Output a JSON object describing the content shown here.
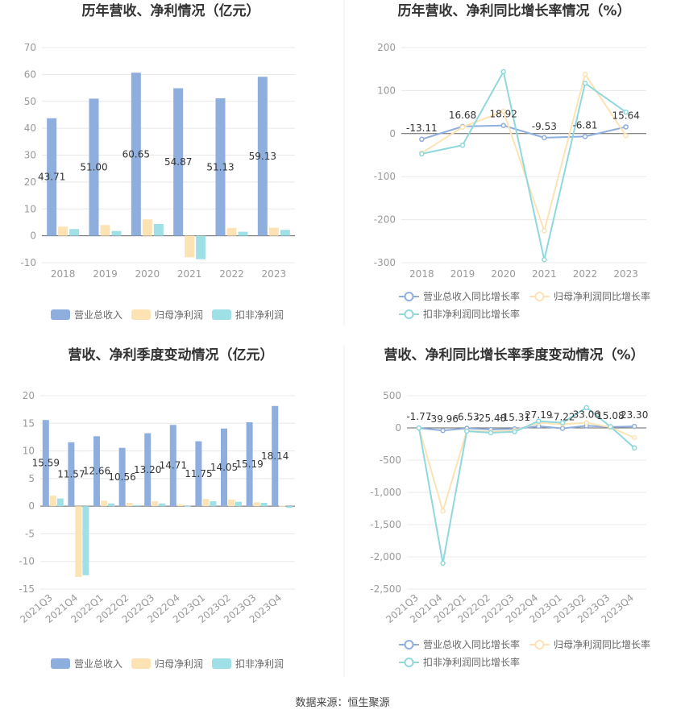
{
  "source_text": "数据来源：恒生聚源",
  "colors": {
    "revenue": "#8eaede",
    "net_profit": "#fde2b4",
    "deducted_profit": "#9fdfe6",
    "revenue_line": "#8eaede",
    "net_profit_line": "#fde2b4",
    "deducted_line": "#8fd8dc",
    "grid": "#e8e8e8",
    "axis": "#666666",
    "divider": "#eeeeee"
  },
  "chart_data": [
    {
      "id": "annual_amounts",
      "type": "bar",
      "title": "历年营收、净利情况（亿元）",
      "categories": [
        "2018",
        "2019",
        "2020",
        "2021",
        "2022",
        "2023"
      ],
      "y_ticks": [
        "-10",
        "0",
        "10",
        "20",
        "30",
        "40",
        "50",
        "60",
        "70"
      ],
      "ylim": [
        -10,
        70
      ],
      "grid": true,
      "legend_position": "bottom",
      "series": [
        {
          "name": "营业总收入",
          "values": [
            43.71,
            51.0,
            60.65,
            54.87,
            51.13,
            59.13
          ],
          "labels": [
            "43.71",
            "51.00",
            "60.65",
            "54.87",
            "51.13",
            "59.13"
          ]
        },
        {
          "name": "归母净利润",
          "values": [
            3.4,
            4.0,
            6.1,
            -8.0,
            2.9,
            3.0
          ]
        },
        {
          "name": "扣非净利润",
          "values": [
            2.5,
            1.8,
            4.4,
            -8.7,
            1.5,
            2.2
          ]
        }
      ]
    },
    {
      "id": "annual_growth",
      "type": "line",
      "title": "历年营收、净利同比增长率情况（%）",
      "categories": [
        "2018",
        "2019",
        "2020",
        "2021",
        "2022",
        "2023"
      ],
      "y_ticks": [
        "-300",
        "-200",
        "-100",
        "0",
        "100",
        "200"
      ],
      "ylim": [
        -300,
        200
      ],
      "grid": true,
      "legend_position": "bottom",
      "series": [
        {
          "name": "营业总收入同比增长率",
          "values": [
            -13.11,
            16.68,
            18.92,
            -9.53,
            -6.81,
            15.64
          ],
          "labels": [
            "-13.11",
            "16.68",
            "18.92",
            "-9.53",
            "-6.81",
            "15.64"
          ]
        },
        {
          "name": "归母净利润同比增长率",
          "values": [
            -45,
            15,
            52,
            -226,
            138,
            -5
          ]
        },
        {
          "name": "扣非净利润同比增长率",
          "values": [
            -47,
            -27,
            144,
            -293,
            117,
            50
          ]
        }
      ]
    },
    {
      "id": "quarterly_amounts",
      "type": "bar",
      "title": "营收、净利季度变动情况（亿元）",
      "categories": [
        "2021Q3",
        "2021Q4",
        "2022Q1",
        "2022Q2",
        "2022Q3",
        "2022Q4",
        "2023Q1",
        "2023Q2",
        "2023Q3",
        "2023Q4"
      ],
      "y_ticks": [
        "-15",
        "-10",
        "-5",
        "0",
        "5",
        "10",
        "15",
        "20"
      ],
      "ylim": [
        -15,
        20
      ],
      "grid": true,
      "legend_position": "bottom",
      "series": [
        {
          "name": "营业总收入",
          "values": [
            15.59,
            11.57,
            12.66,
            10.56,
            13.2,
            14.71,
            11.75,
            14.05,
            15.19,
            18.14
          ],
          "labels": [
            "15.59",
            "11.57",
            "12.66",
            "10.56",
            "13.20",
            "14.71",
            "11.75",
            "14.05",
            "15.19",
            "18.14"
          ]
        },
        {
          "name": "归母净利润",
          "values": [
            1.9,
            -12.8,
            1.0,
            0.6,
            0.9,
            0.3,
            1.3,
            1.2,
            0.7,
            0.1
          ]
        },
        {
          "name": "扣非净利润",
          "values": [
            1.4,
            -12.5,
            0.5,
            0.2,
            0.5,
            0.05,
            0.9,
            0.8,
            0.6,
            -0.3
          ]
        }
      ]
    },
    {
      "id": "quarterly_growth",
      "type": "line",
      "title": "营收、净利同比增长率季度变动情况（%）",
      "categories": [
        "2021Q3",
        "2021Q4",
        "2022Q1",
        "2022Q2",
        "2022Q3",
        "2022Q4",
        "2023Q1",
        "2023Q2",
        "2023Q3",
        "2023Q4"
      ],
      "y_ticks": [
        "-2,500",
        "-2,000",
        "-1,500",
        "-1,000",
        "-500",
        "0",
        "500"
      ],
      "ylim": [
        -2500,
        500
      ],
      "grid": true,
      "legend_position": "bottom",
      "series": [
        {
          "name": "营业总收入同比增长率",
          "values": [
            -1.77,
            -39.96,
            -6.53,
            -25.48,
            -15.31,
            27.19,
            -7.22,
            33.06,
            15.08,
            23.3
          ],
          "labels": [
            "-1.77",
            "-39.96",
            "-6.53",
            "-25.48",
            "-15.31",
            "27.19",
            "-7.22",
            "33.06",
            "15.08",
            "23.30"
          ]
        },
        {
          "name": "归母净利润同比增长率",
          "values": [
            0,
            -1290,
            -45,
            -60,
            -40,
            80,
            60,
            80,
            10,
            -150
          ]
        },
        {
          "name": "扣非净利润同比增长率",
          "values": [
            0,
            -2100,
            -50,
            -75,
            -60,
            105,
            80,
            315,
            20,
            -310
          ]
        }
      ]
    }
  ]
}
